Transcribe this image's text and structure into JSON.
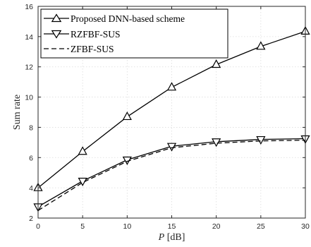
{
  "chart_data": {
    "type": "line",
    "title": "",
    "xlabel_var": "P",
    "xlabel_unit": " [dB]",
    "ylabel": "Sum rate",
    "xlim": [
      0,
      30
    ],
    "ylim": [
      2,
      16
    ],
    "x_ticks": [
      0,
      5,
      10,
      15,
      20,
      25,
      30
    ],
    "y_ticks": [
      2,
      4,
      6,
      8,
      10,
      12,
      14,
      16
    ],
    "grid": true,
    "legend_position": "top-left",
    "x": [
      0,
      5,
      10,
      15,
      20,
      25,
      30
    ],
    "series": [
      {
        "name": "Proposed DNN-based scheme",
        "values": [
          4.0,
          6.4,
          8.7,
          10.65,
          12.15,
          13.35,
          14.35
        ],
        "marker": "triangle-up",
        "line_style": "solid",
        "color": "#000000"
      },
      {
        "name": "RZFBF-SUS",
        "values": [
          2.75,
          4.45,
          5.85,
          6.75,
          7.05,
          7.2,
          7.25
        ],
        "marker": "triangle-down",
        "line_style": "solid",
        "color": "#000000"
      },
      {
        "name": "ZFBF-SUS",
        "values": [
          2.5,
          4.35,
          5.75,
          6.65,
          6.95,
          7.1,
          7.15
        ],
        "marker": "none",
        "line_style": "dashed",
        "color": "#000000"
      }
    ]
  }
}
